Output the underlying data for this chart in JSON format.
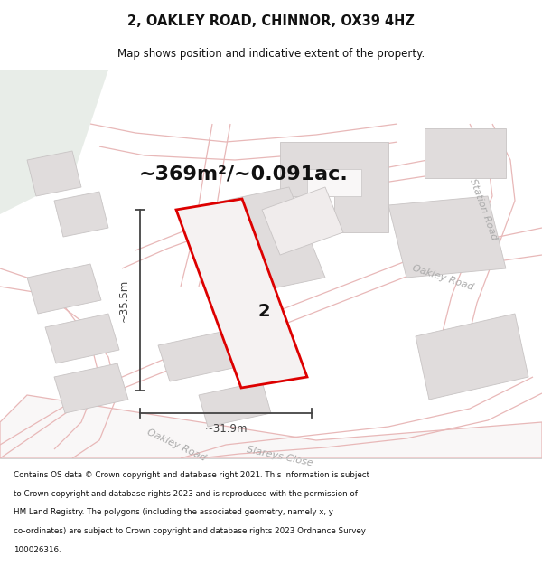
{
  "title": "2, OAKLEY ROAD, CHINNOR, OX39 4HZ",
  "subtitle": "Map shows position and indicative extent of the property.",
  "area_text": "~369m²/~0.091ac.",
  "dim_width": "~31.9m",
  "dim_height": "~35.5m",
  "property_label": "2",
  "footer_lines": [
    "Contains OS data © Crown copyright and database right 2021. This information is subject",
    "to Crown copyright and database rights 2023 and is reproduced with the permission of",
    "HM Land Registry. The polygons (including the associated geometry, namely x, y",
    "co-ordinates) are subject to Crown copyright and database rights 2023 Ordnance Survey",
    "100026316."
  ],
  "map_bg": "#f9f7f7",
  "top_left_bg": "#eef2ee",
  "road_outline_color": "#e8b8b8",
  "building_fill": "#e0dcdc",
  "building_outline": "#c8c4c4",
  "highlight_color": "#dd0000",
  "dim_color": "#444444",
  "title_color": "#111111",
  "footer_color": "#111111",
  "road_label_color": "#aaaaaa",
  "prop_fill": "#f5f2f2"
}
